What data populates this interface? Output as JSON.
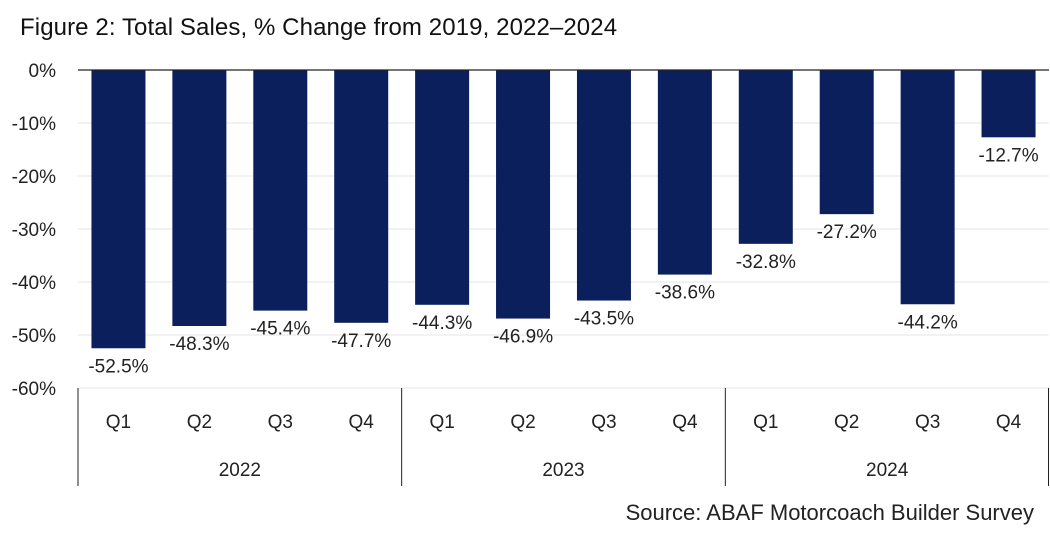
{
  "title": "Figure 2: Total Sales, % Change from 2019, 2022–2024",
  "source": "Source: ABAF Motorcoach Builder Survey",
  "colors": {
    "bar": "#0b1f5c",
    "grid": "#e6e6e6",
    "axis": "#222222",
    "text": "#222222"
  },
  "chart_data": {
    "type": "bar",
    "title": "Figure 2: Total Sales, % Change from 2019, 2022–2024",
    "categories": [
      "Q1",
      "Q2",
      "Q3",
      "Q4",
      "Q1",
      "Q2",
      "Q3",
      "Q4",
      "Q1",
      "Q2",
      "Q3",
      "Q4"
    ],
    "groups": [
      {
        "label": "2022",
        "quarters": [
          "Q1",
          "Q2",
          "Q3",
          "Q4"
        ]
      },
      {
        "label": "2023",
        "quarters": [
          "Q1",
          "Q2",
          "Q3",
          "Q4"
        ]
      },
      {
        "label": "2024",
        "quarters": [
          "Q1",
          "Q2",
          "Q3",
          "Q4"
        ]
      }
    ],
    "values": [
      -52.5,
      -48.3,
      -45.4,
      -47.7,
      -44.3,
      -46.9,
      -43.5,
      -38.6,
      -32.8,
      -27.2,
      -44.2,
      -12.7
    ],
    "data_labels": [
      "-52.5%",
      "-48.3%",
      "-45.4%",
      "-47.7%",
      "-44.3%",
      "-46.9%",
      "-43.5%",
      "-38.6%",
      "-32.8%",
      "-27.2%",
      "-44.2%",
      "-12.7%"
    ],
    "yticks": [
      0,
      -10,
      -20,
      -30,
      -40,
      -50,
      -60
    ],
    "ytick_labels": [
      "0%",
      "-10%",
      "-20%",
      "-30%",
      "-40%",
      "-50%",
      "-60%"
    ],
    "ylim": [
      -60,
      0
    ],
    "grid": true,
    "legend": "none"
  }
}
